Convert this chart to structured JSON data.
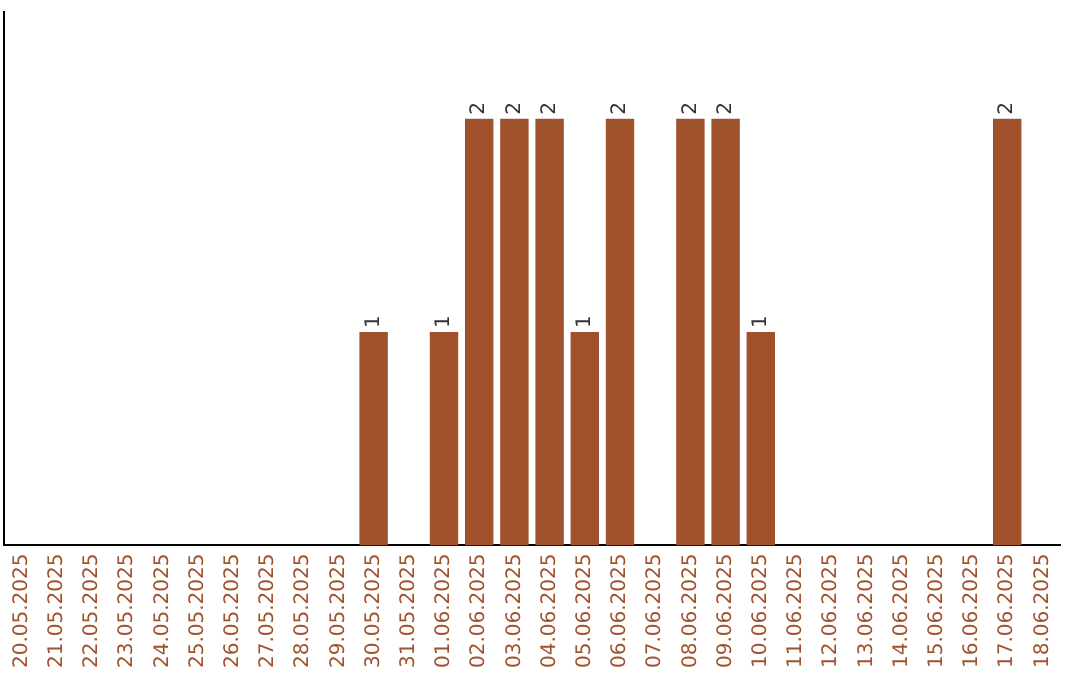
{
  "chart_data": {
    "type": "bar",
    "categories": [
      "20.05.2025",
      "21.05.2025",
      "22.05.2025",
      "23.05.2025",
      "24.05.2025",
      "25.05.2025",
      "26.05.2025",
      "27.05.2025",
      "28.05.2025",
      "29.05.2025",
      "30.05.2025",
      "31.05.2025",
      "01.06.2025",
      "02.06.2025",
      "03.06.2025",
      "04.06.2025",
      "05.06.2025",
      "06.06.2025",
      "07.06.2025",
      "08.06.2025",
      "09.06.2025",
      "10.06.2025",
      "11.06.2025",
      "12.06.2025",
      "13.06.2025",
      "14.06.2025",
      "15.06.2025",
      "16.06.2025",
      "17.06.2025",
      "18.06.2025"
    ],
    "values": [
      0,
      0,
      0,
      0,
      0,
      0,
      0,
      0,
      0,
      0,
      1,
      0,
      1,
      2,
      2,
      2,
      1,
      2,
      0,
      2,
      2,
      1,
      0,
      0,
      0,
      0,
      0,
      0,
      2,
      0
    ],
    "value_labels": [
      null,
      null,
      null,
      null,
      null,
      null,
      null,
      null,
      null,
      null,
      "1",
      null,
      "1",
      "2",
      "2",
      "2",
      "1",
      "2",
      null,
      "2",
      "2",
      "1",
      null,
      null,
      null,
      null,
      null,
      null,
      "2",
      null
    ],
    "color": "#a0522d",
    "grid": false,
    "legend": false,
    "tick_labels": "x"
  }
}
